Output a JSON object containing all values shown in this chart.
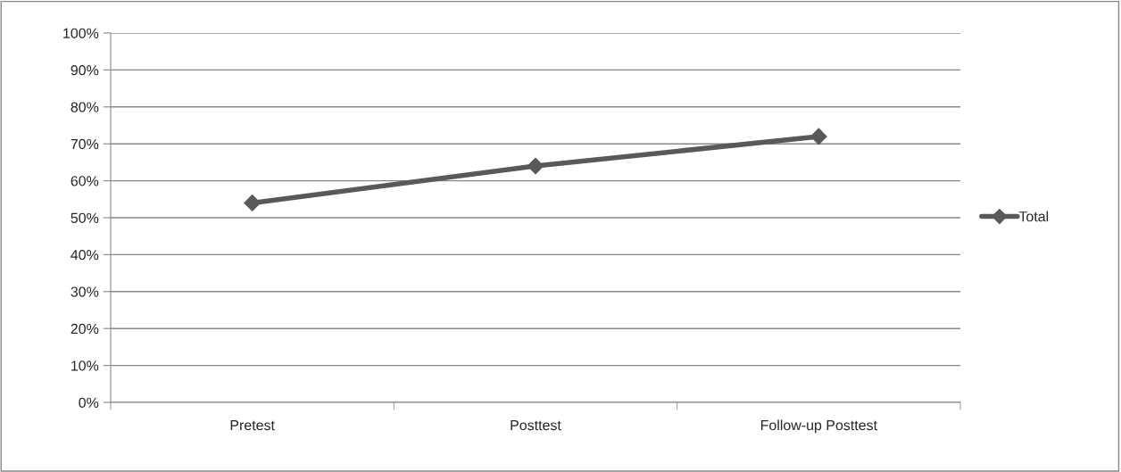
{
  "chart_data": {
    "type": "line",
    "categories": [
      "Pretest",
      "Posttest",
      "Follow-up Posttest"
    ],
    "series": [
      {
        "name": "Total",
        "color": "#595959",
        "values": [
          54,
          64,
          72
        ]
      }
    ],
    "ylim": [
      0,
      100
    ],
    "yticks": [
      {
        "value": 0,
        "label": "0%"
      },
      {
        "value": 10,
        "label": "10%"
      },
      {
        "value": 20,
        "label": "20%"
      },
      {
        "value": 30,
        "label": "30%"
      },
      {
        "value": 40,
        "label": "40%"
      },
      {
        "value": 50,
        "label": "50%"
      },
      {
        "value": 60,
        "label": "60%"
      },
      {
        "value": 70,
        "label": "70%"
      },
      {
        "value": 80,
        "label": "80%"
      },
      {
        "value": 90,
        "label": "90%"
      },
      {
        "value": 100,
        "label": "100%"
      }
    ],
    "grid": "y",
    "legend": "right",
    "marker": "diamond",
    "line_style": "solid"
  }
}
